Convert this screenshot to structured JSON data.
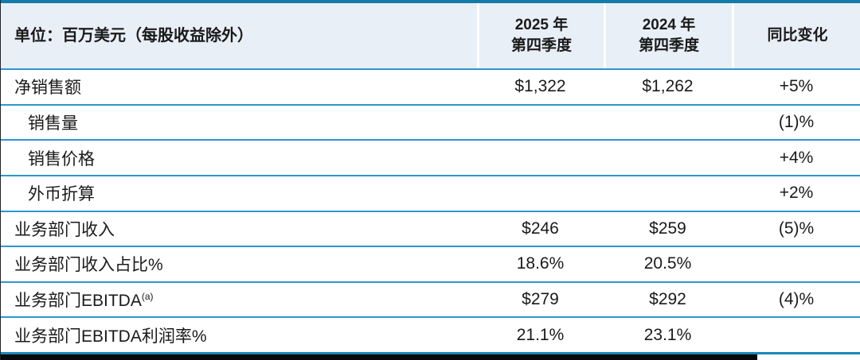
{
  "table": {
    "title_semantic": "quarterly-financial-summary",
    "unit_label": "单位：百万美元（每股收益除外）",
    "columns": {
      "q4_2025": "2025 年\n第四季度",
      "q4_2024": "2024 年\n第四季度",
      "change": "同比变化"
    }
  },
  "rows": [
    {
      "label": "净销售额",
      "q4_2025": "$1,322",
      "q4_2024": "$1,262",
      "change": "+5%"
    },
    {
      "label": "销售量",
      "change": "(1)%"
    },
    {
      "label": "销售价格",
      "change": "+4%"
    },
    {
      "label": "外币折算",
      "change": "+2%"
    },
    {
      "label": "业务部门收入",
      "q4_2025": "$246",
      "q4_2024": "$259",
      "change": "(5)%"
    },
    {
      "label": "业务部门收入占比%",
      "q4_2025": "18.6%",
      "q4_2024": "20.5%"
    },
    {
      "label": "业务部门EBITDA",
      "label_sup": "(a)",
      "q4_2025": "$279",
      "q4_2024": "$292",
      "change": "(4)%"
    },
    {
      "label": "业务部门EBITDA利润率%",
      "q4_2025": "21.1%",
      "q4_2024": "23.1%"
    }
  ],
  "colors": {
    "top_border": "#127ba8",
    "header_background": "#e9eff7",
    "row_separator": "#2d96cf",
    "bottom_line": "#1d87b8",
    "black_bar": "#0a0a0a"
  }
}
